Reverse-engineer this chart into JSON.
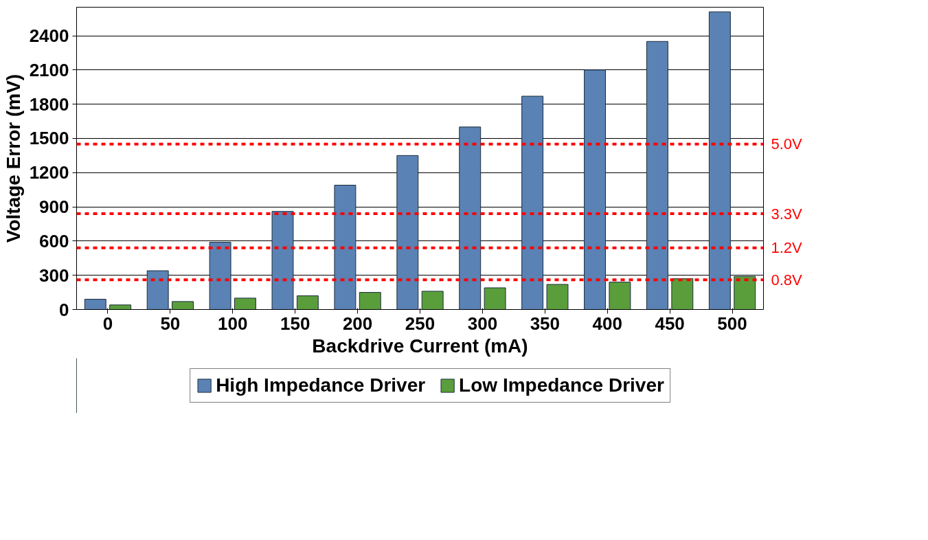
{
  "chart_data": {
    "type": "bar",
    "xlabel": "Backdrive Current (mA)",
    "ylabel": "Voltage Error (mV)",
    "categories": [
      "0",
      "50",
      "100",
      "150",
      "200",
      "250",
      "300",
      "350",
      "400",
      "450",
      "500"
    ],
    "series": [
      {
        "name": "High Impedance Driver",
        "color": "#5a82b4",
        "values": [
          90,
          340,
          590,
          860,
          1090,
          1350,
          1600,
          1870,
          2100,
          2350,
          2610
        ]
      },
      {
        "name": "Low Impedance Driver",
        "color": "#5a9e3c",
        "values": [
          40,
          70,
          100,
          120,
          150,
          160,
          190,
          220,
          240,
          270,
          290
        ]
      }
    ],
    "ylim": [
      0,
      2650
    ],
    "yticks": [
      0,
      300,
      600,
      900,
      1200,
      1500,
      1800,
      2100,
      2400
    ],
    "grid": "y",
    "legend": "bottom",
    "ref_lines": [
      {
        "axis": "y",
        "value": 1450,
        "label": "5.0V",
        "color": "#ff0000",
        "line_style": "dashed"
      },
      {
        "axis": "y",
        "value": 840,
        "label": "3.3V",
        "color": "#ff0000",
        "line_style": "dashed"
      },
      {
        "axis": "y",
        "value": 540,
        "label": "1.2V",
        "color": "#ff0000",
        "line_style": "dashed"
      },
      {
        "axis": "y",
        "value": 260,
        "label": "0.8V",
        "color": "#ff0000",
        "line_style": "dashed"
      }
    ]
  }
}
